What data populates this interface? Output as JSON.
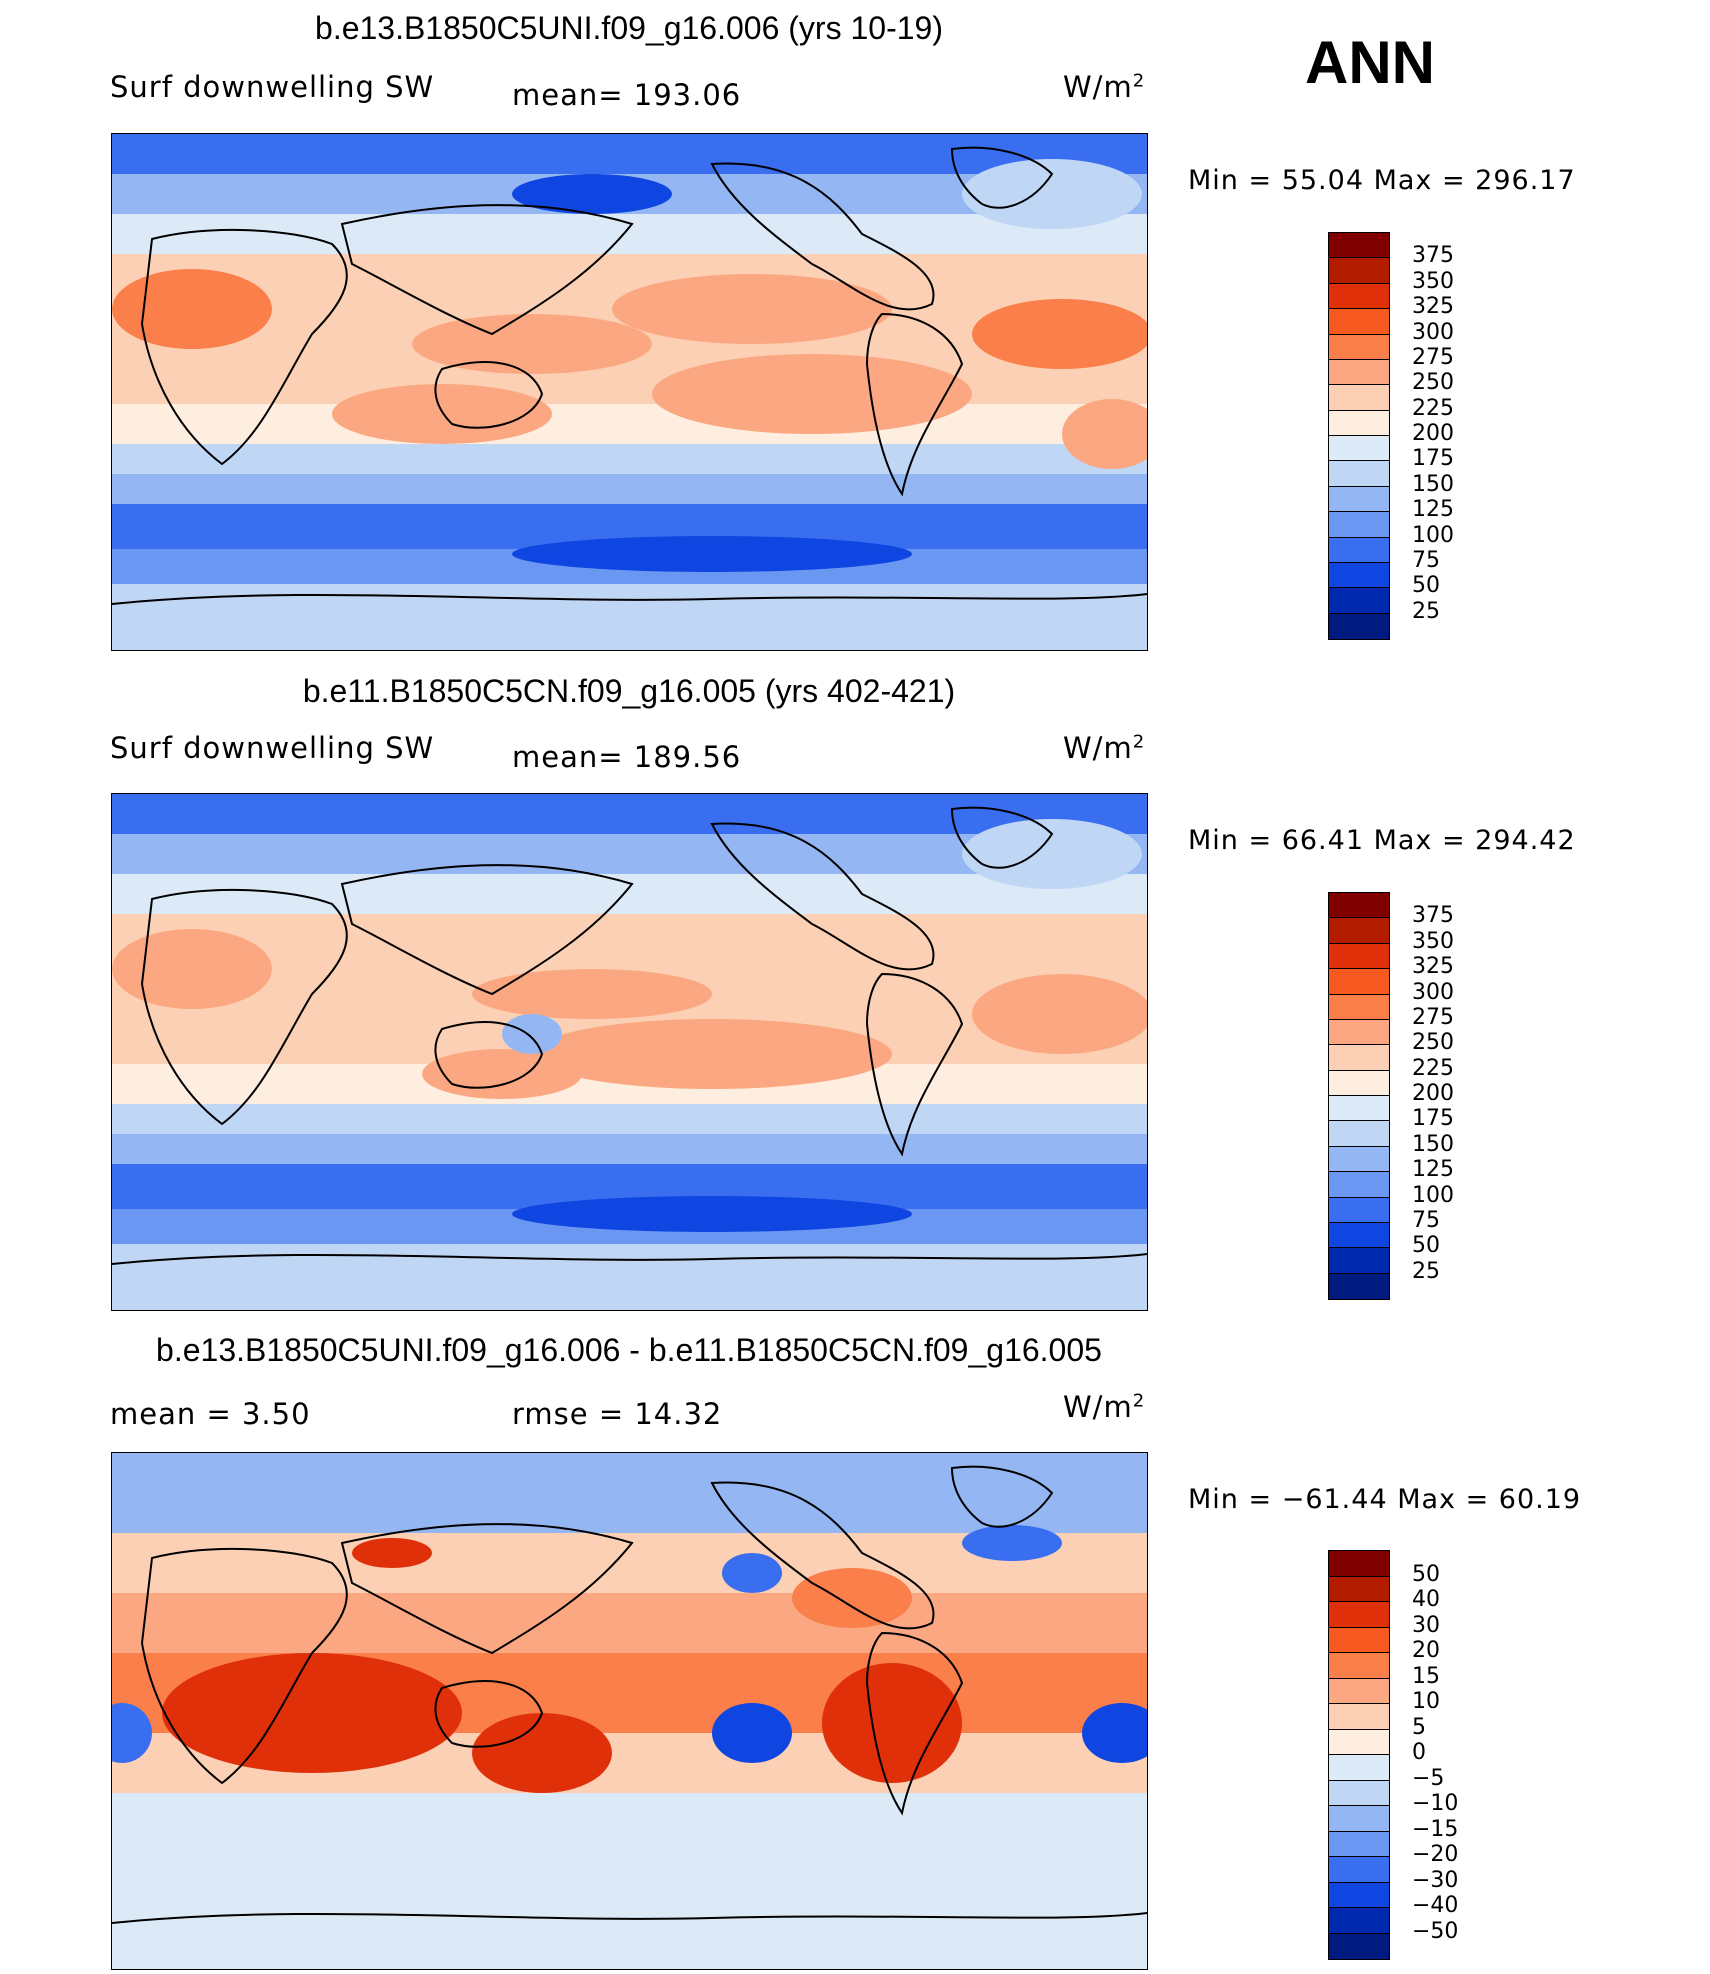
{
  "season": "ANN",
  "panels": [
    {
      "title": "b.e13.B1850C5UNI.f09_g16.006 (yrs 10-19)",
      "left_label": "Surf  downwelling  SW",
      "mid_label": "mean=  193.06",
      "units": "W/m",
      "units_sup": "2",
      "min_max": "Min  =    55.04  Max  =  296.17",
      "colorbar": {
        "levels": [
          "375",
          "350",
          "325",
          "300",
          "275",
          "250",
          "225",
          "200",
          "175",
          "150",
          "125",
          "100",
          "75",
          "50",
          "25"
        ],
        "colors": [
          "#800000",
          "#b41c00",
          "#e0300a",
          "#f65a20",
          "#fa7f4a",
          "#fba882",
          "#fcd0b4",
          "#fdeedf",
          "#dceaf8",
          "#bfd6f5",
          "#94b7f3",
          "#6a97f2",
          "#3a6ef0",
          "#0f45e0",
          "#0029b0",
          "#001a80"
        ]
      }
    },
    {
      "title": "b.e11.B1850C5CN.f09_g16.005 (yrs 402-421)",
      "left_label": "Surf  downwelling  SW",
      "mid_label": "mean=  189.56",
      "units": "W/m",
      "units_sup": "2",
      "min_max": "Min  =    66.41  Max  =  294.42",
      "colorbar": {
        "levels": [
          "375",
          "350",
          "325",
          "300",
          "275",
          "250",
          "225",
          "200",
          "175",
          "150",
          "125",
          "100",
          "75",
          "50",
          "25"
        ],
        "colors": [
          "#800000",
          "#b41c00",
          "#e0300a",
          "#f65a20",
          "#fa7f4a",
          "#fba882",
          "#fcd0b4",
          "#fdeedf",
          "#dceaf8",
          "#bfd6f5",
          "#94b7f3",
          "#6a97f2",
          "#3a6ef0",
          "#0f45e0",
          "#0029b0",
          "#001a80"
        ]
      }
    },
    {
      "title": "b.e13.B1850C5UNI.f09_g16.006 - b.e11.B1850C5CN.f09_g16.005",
      "left_label": "mean  =      3.50",
      "mid_label": "rmse  =     14.32",
      "units": "W/m",
      "units_sup": "2",
      "min_max": "Min  =  −61.44  Max  =     60.19",
      "colorbar": {
        "levels": [
          "50",
          "40",
          "30",
          "20",
          "15",
          "10",
          "5",
          "0",
          "−5",
          "−10",
          "−15",
          "−20",
          "−30",
          "−40",
          "−50"
        ],
        "colors": [
          "#800000",
          "#b41c00",
          "#e0300a",
          "#f65a20",
          "#fa7f4a",
          "#fba882",
          "#fcd0b4",
          "#fdeedf",
          "#dceaf8",
          "#bfd6f5",
          "#94b7f3",
          "#6a97f2",
          "#3a6ef0",
          "#0f45e0",
          "#0029b0",
          "#001a80"
        ]
      }
    }
  ]
}
